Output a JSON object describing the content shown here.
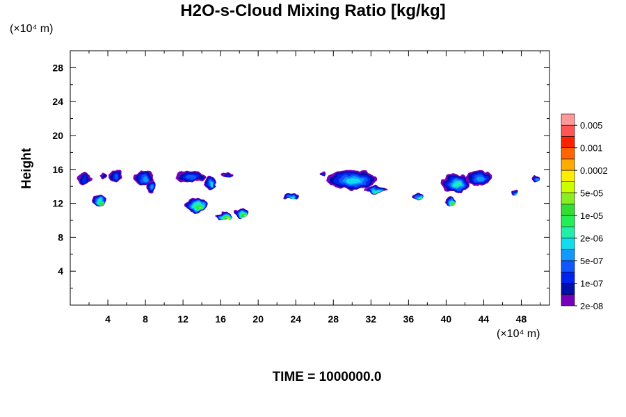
{
  "chart_data": {
    "type": "heatmap",
    "title": "H2O-s-Cloud Mixing Ratio [kg/kg]",
    "ylabel": "Height",
    "xlabel": "",
    "x_unit": "(×10⁴ m)",
    "y_unit": "(×10⁴ m)",
    "xlim": [
      0,
      51
    ],
    "ylim": [
      0,
      30
    ],
    "x_ticks": [
      "4",
      "8",
      "12",
      "16",
      "20",
      "24",
      "28",
      "32",
      "36",
      "40",
      "44",
      "48"
    ],
    "y_ticks": [
      "4",
      "8",
      "12",
      "16",
      "20",
      "24",
      "28"
    ],
    "colorbar": {
      "labels": [
        "0.005",
        "0.001",
        "0.0002",
        "5e-05",
        "1e-05",
        "2e-06",
        "5e-07",
        "1e-07",
        "2e-08"
      ],
      "colors": [
        "#ff9999",
        "#ff5555",
        "#ff2200",
        "#ff6600",
        "#ffaa00",
        "#ffee00",
        "#ccff00",
        "#88ee22",
        "#33dd33",
        "#22ee55",
        "#22eeaa",
        "#11ddee",
        "#1199ff",
        "#1155ff",
        "#0022ee",
        "#0011aa",
        "#7700bb"
      ]
    },
    "cloud_regions": [
      {
        "x": 1.5,
        "y": 14.9,
        "w": 1.6,
        "h": 1.3,
        "level": 14
      },
      {
        "x": 3.5,
        "y": 15.3,
        "w": 0.7,
        "h": 0.6,
        "level": 15
      },
      {
        "x": 4.8,
        "y": 15.2,
        "w": 1.4,
        "h": 1.4,
        "level": 13
      },
      {
        "x": 7.8,
        "y": 15.0,
        "w": 2.0,
        "h": 1.7,
        "level": 12
      },
      {
        "x": 8.6,
        "y": 14.0,
        "w": 1.0,
        "h": 1.6,
        "level": 12
      },
      {
        "x": 12.8,
        "y": 15.2,
        "w": 3.2,
        "h": 1.3,
        "level": 13
      },
      {
        "x": 14.9,
        "y": 14.4,
        "w": 1.2,
        "h": 1.9,
        "level": 11
      },
      {
        "x": 16.8,
        "y": 15.4,
        "w": 1.2,
        "h": 0.7,
        "level": 14
      },
      {
        "x": 3.0,
        "y": 12.3,
        "w": 1.4,
        "h": 1.3,
        "level": 8
      },
      {
        "x": 13.4,
        "y": 11.8,
        "w": 2.3,
        "h": 1.8,
        "level": 7
      },
      {
        "x": 16.3,
        "y": 10.5,
        "w": 1.7,
        "h": 0.9,
        "level": 6
      },
      {
        "x": 18.2,
        "y": 10.8,
        "w": 1.4,
        "h": 1.0,
        "level": 6
      },
      {
        "x": 23.5,
        "y": 12.8,
        "w": 1.6,
        "h": 0.7,
        "level": 10
      },
      {
        "x": 30.0,
        "y": 14.8,
        "w": 5.4,
        "h": 2.3,
        "level": 11
      },
      {
        "x": 32.5,
        "y": 13.6,
        "w": 2.4,
        "h": 0.8,
        "level": 10
      },
      {
        "x": 37.0,
        "y": 12.8,
        "w": 1.2,
        "h": 0.8,
        "level": 9
      },
      {
        "x": 41.0,
        "y": 14.4,
        "w": 3.0,
        "h": 2.2,
        "level": 10
      },
      {
        "x": 40.4,
        "y": 12.2,
        "w": 1.2,
        "h": 0.9,
        "level": 7
      },
      {
        "x": 43.5,
        "y": 15.0,
        "w": 2.6,
        "h": 1.7,
        "level": 12
      },
      {
        "x": 49.5,
        "y": 14.8,
        "w": 0.9,
        "h": 0.9,
        "level": 12
      },
      {
        "x": 26.8,
        "y": 15.5,
        "w": 0.7,
        "h": 0.6,
        "level": 14
      },
      {
        "x": 47.3,
        "y": 13.3,
        "w": 0.6,
        "h": 0.6,
        "level": 11
      }
    ]
  },
  "time_label": "TIME = 1000000.0"
}
